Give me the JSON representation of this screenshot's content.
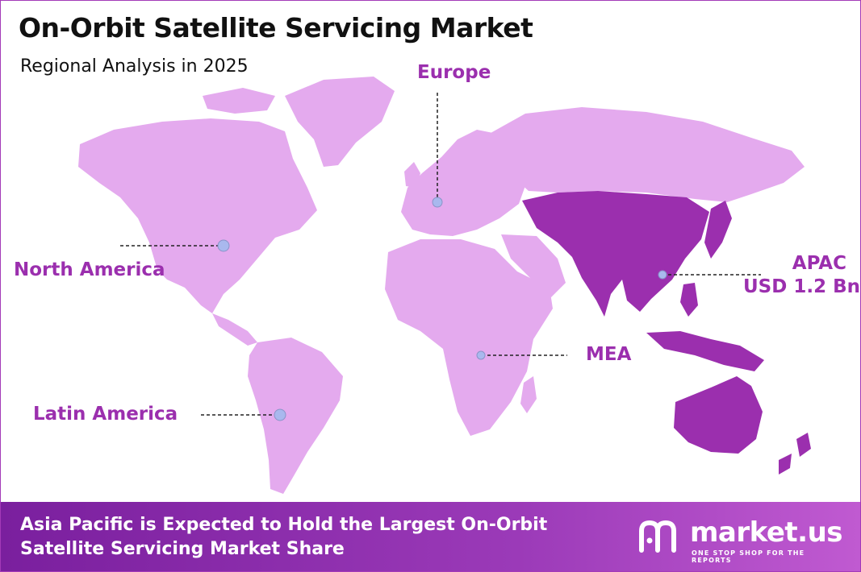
{
  "header": {
    "title": "On-Orbit Satellite Servicing Market",
    "subtitle": "Regional Analysis in 2025"
  },
  "regions": {
    "europe": {
      "label": "Europe"
    },
    "north_america": {
      "label": "North America"
    },
    "apac": {
      "label": "APAC",
      "value": "USD 1.2 Bn"
    },
    "mea": {
      "label": "MEA"
    },
    "latin_america": {
      "label": "Latin America"
    }
  },
  "colors": {
    "land": "#e4aaee",
    "highlight": "#9b2fae",
    "label": "#9b2fae",
    "marker": "#a9b8ee",
    "footer": "#8a2caa"
  },
  "footer": {
    "text": "Asia Pacific is Expected to Hold the Largest On-Orbit Satellite Servicing Market Share"
  },
  "brand": {
    "name": "market.us",
    "tagline": "ONE STOP SHOP FOR THE REPORTS"
  }
}
